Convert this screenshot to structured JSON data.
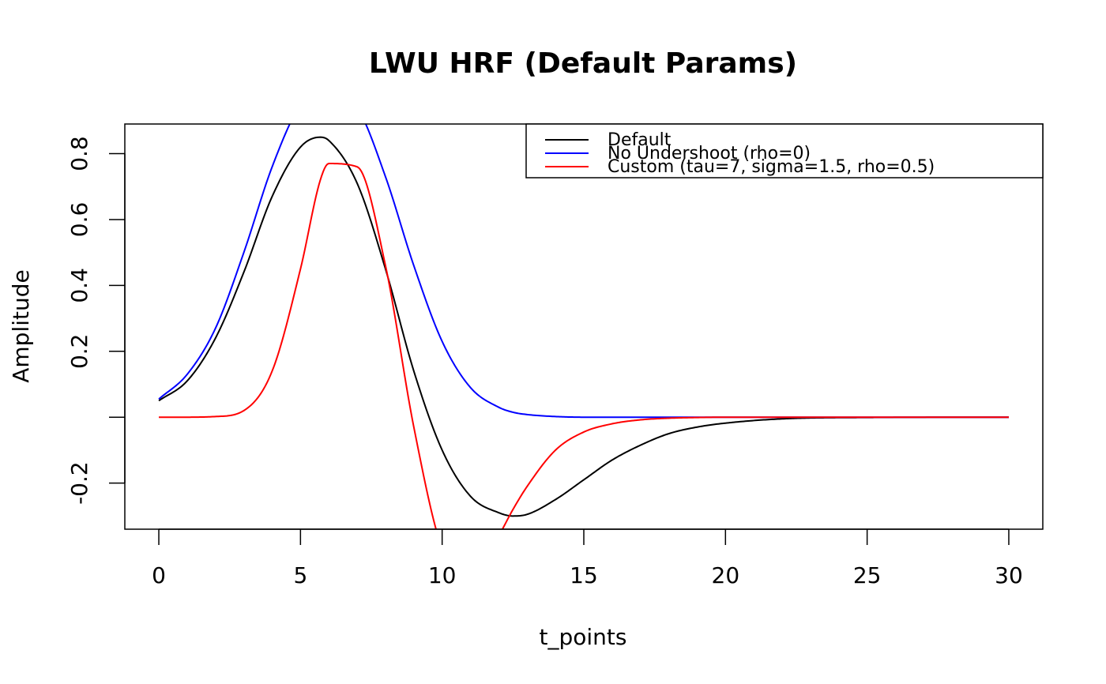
{
  "chart_data": {
    "type": "line",
    "title": "LWU HRF (Default Params)",
    "xlabel": "t_points",
    "ylabel": "Amplitude",
    "xlim": [
      -1.2,
      31.2
    ],
    "ylim": [
      -0.34,
      0.89
    ],
    "x_ticks": [
      0,
      5,
      10,
      15,
      20,
      25,
      30
    ],
    "x_tick_labels": [
      "0",
      "5",
      "10",
      "15",
      "20",
      "25",
      "30"
    ],
    "y_ticks": [
      -0.2,
      0.0,
      0.2,
      0.4,
      0.6,
      0.8
    ],
    "y_tick_labels": [
      "-0.2",
      "",
      "0.2",
      "0.4",
      "0.6",
      "0.8"
    ],
    "grid": false,
    "legend_position": "top-right",
    "x": [
      0,
      1,
      2,
      3,
      4,
      5,
      5.7,
      6,
      7,
      8,
      9,
      10,
      11,
      12,
      12.5,
      13,
      14,
      15,
      16,
      17,
      18,
      19,
      20,
      22,
      25,
      30
    ],
    "series": [
      {
        "name": "Default",
        "color": "#000000",
        "values": [
          0.05,
          0.11,
          0.24,
          0.44,
          0.67,
          0.82,
          0.85,
          0.84,
          0.71,
          0.45,
          0.14,
          -0.1,
          -0.24,
          -0.29,
          -0.3,
          -0.295,
          -0.25,
          -0.19,
          -0.13,
          -0.085,
          -0.05,
          -0.03,
          -0.018,
          -0.005,
          -0.001,
          0.0
        ]
      },
      {
        "name": "No Undershoot (rho=0)",
        "color": "#0000ff",
        "values": [
          0.055,
          0.13,
          0.27,
          0.5,
          0.76,
          0.95,
          1.0,
          0.99,
          0.94,
          0.73,
          0.46,
          0.23,
          0.09,
          0.03,
          0.015,
          0.008,
          0.002,
          0.0,
          0.0,
          0.0,
          0.0,
          0.0,
          0.0,
          0.0,
          0.0,
          0.0
        ]
      },
      {
        "name": "Custom (tau=7, sigma=1.5, rho=0.5)",
        "color": "#ff0000",
        "values": [
          0.0,
          0.0,
          0.002,
          0.02,
          0.14,
          0.45,
          0.72,
          0.77,
          0.76,
          0.46,
          -0.03,
          -0.4,
          -0.5,
          -0.36,
          -0.28,
          -0.21,
          -0.1,
          -0.045,
          -0.02,
          -0.008,
          -0.003,
          -0.001,
          0.0,
          0.0,
          0.0,
          0.0
        ]
      }
    ]
  }
}
